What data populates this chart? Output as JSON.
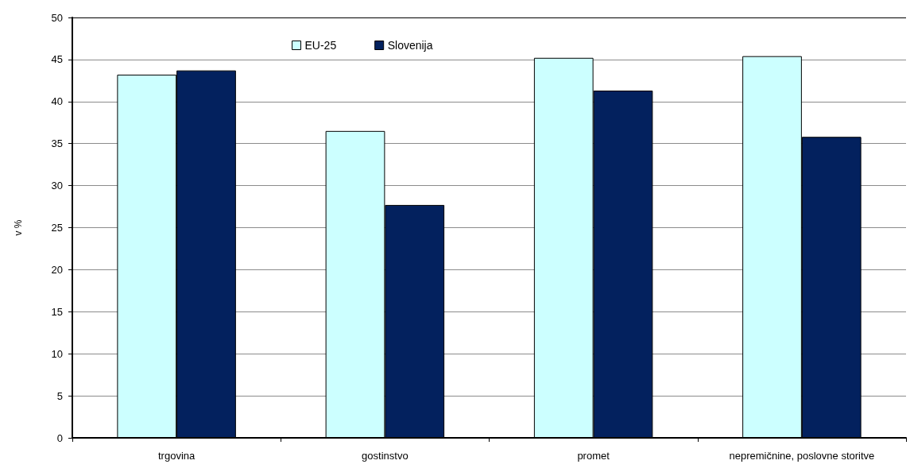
{
  "chart_data": {
    "type": "bar",
    "ylabel": "v %",
    "categories": [
      "trgovina",
      "gostinstvo",
      "promet",
      "nepremičnine, poslovne storitve"
    ],
    "series": [
      {
        "name": "EU-25",
        "color": "#ccffff",
        "values": [
          43.2,
          36.5,
          45.2,
          45.4
        ]
      },
      {
        "name": "Slovenija",
        "color": "#03215e",
        "values": [
          43.7,
          27.7,
          41.3,
          35.8
        ]
      }
    ],
    "ylim": [
      0,
      50
    ],
    "yticks": [
      0,
      5,
      10,
      15,
      20,
      25,
      30,
      35,
      40,
      45,
      50
    ],
    "grid": "y",
    "legend": "top"
  }
}
